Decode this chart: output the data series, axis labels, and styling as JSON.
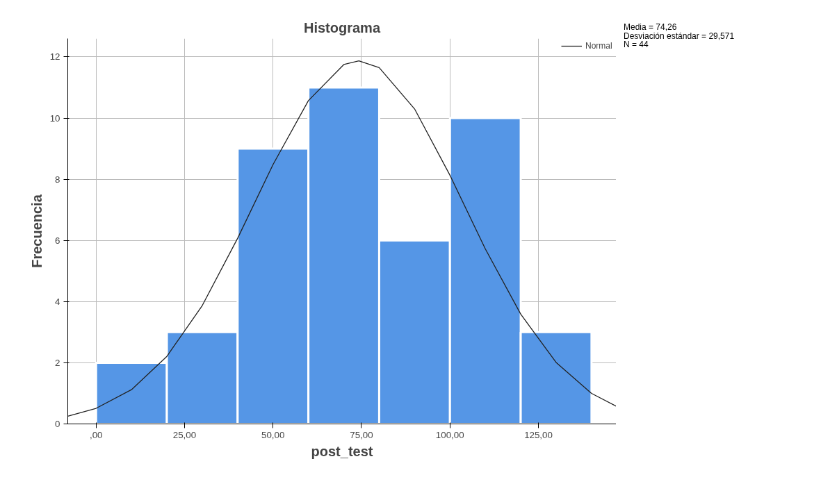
{
  "chart_data": {
    "type": "histogram",
    "title": "Histograma",
    "xlabel": "post_test",
    "ylabel": "Frecuencia",
    "bins": [
      0,
      20,
      40,
      60,
      80,
      100,
      120,
      140
    ],
    "values": [
      2,
      3,
      9,
      11,
      6,
      10,
      3
    ],
    "color": "#5596e6",
    "series": [
      {
        "type": "line",
        "name": "Normal",
        "color": "#222222",
        "x": [
          -8,
          0,
          10,
          20,
          30,
          40,
          50,
          60,
          70,
          74.26,
          80,
          90,
          100,
          110,
          120,
          130,
          140,
          147
        ],
        "values": [
          0.25,
          0.51,
          1.12,
          2.21,
          3.87,
          6.07,
          8.48,
          10.57,
          11.75,
          11.87,
          11.65,
          10.3,
          8.13,
          5.72,
          3.59,
          2.01,
          1.0,
          0.58
        ]
      }
    ],
    "xlim": [
      -8,
      147
    ],
    "ylim": [
      0,
      12.6
    ],
    "xticks": [
      {
        "value": 0,
        "label": ",00"
      },
      {
        "value": 25,
        "label": "25,00"
      },
      {
        "value": 50,
        "label": "50,00"
      },
      {
        "value": 75,
        "label": "75,00"
      },
      {
        "value": 100,
        "label": "100,00"
      },
      {
        "value": 125,
        "label": "125,00"
      }
    ],
    "yticks": [
      0,
      2,
      4,
      6,
      8,
      10,
      12
    ],
    "grid": true,
    "legend": "top right",
    "annotations": [
      "Media = 74,26",
      "Desviación estándar = 29,571",
      "N = 44"
    ]
  }
}
